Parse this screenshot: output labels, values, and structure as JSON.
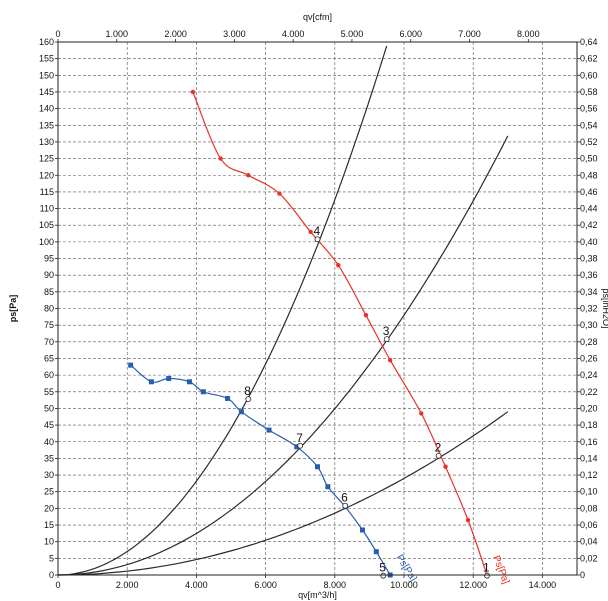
{
  "chart_data": {
    "type": "line",
    "x_axis_bottom": {
      "label": "qv[m^3/h]",
      "range": [
        0,
        15000
      ],
      "ticks": [
        0,
        2000,
        4000,
        6000,
        8000,
        10000,
        12000,
        14000
      ],
      "tick_labels": [
        "0",
        "2.000",
        "4.000",
        "6.000",
        "8.000",
        "10.000",
        "12.000",
        "14.000"
      ]
    },
    "x_axis_top": {
      "label": "qv[cfm]",
      "range": [
        0,
        8828
      ],
      "ticks": [
        0,
        1000,
        2000,
        3000,
        4000,
        5000,
        6000,
        7000,
        8000
      ],
      "tick_labels": [
        "0",
        "1.000",
        "2.000",
        "3.000",
        "4.000",
        "5.000",
        "6.000",
        "7.000",
        "8.000"
      ]
    },
    "y_axis_left": {
      "label": "ps[Pa]",
      "range": [
        0,
        160
      ],
      "step": 5
    },
    "y_axis_right": {
      "label": "ps[inH2O]",
      "range": [
        0,
        0.64
      ],
      "step": 0.02
    },
    "grid": true,
    "series": [
      {
        "name": "Ps[Pa]",
        "color": "#e8312a",
        "points": [
          [
            3900,
            145
          ],
          [
            4700,
            125
          ],
          [
            5500,
            120
          ],
          [
            6400,
            114.5
          ],
          [
            7300,
            103
          ],
          [
            8100,
            93
          ],
          [
            8900,
            78
          ],
          [
            9600,
            64.5
          ],
          [
            10500,
            48.5
          ],
          [
            11200,
            32.5
          ],
          [
            11850,
            16.5
          ],
          [
            12400,
            0
          ]
        ]
      },
      {
        "name": "Ps[Pa]",
        "color": "#2a5db0",
        "points": [
          [
            2100,
            63
          ],
          [
            2700,
            58
          ],
          [
            3200,
            59
          ],
          [
            3800,
            58
          ],
          [
            4200,
            55
          ],
          [
            4900,
            53
          ],
          [
            5300,
            49
          ],
          [
            6100,
            43.5
          ],
          [
            6900,
            38.5
          ],
          [
            7500,
            32.5
          ],
          [
            7800,
            26.5
          ],
          [
            8300,
            20.5
          ],
          [
            8800,
            13.5
          ],
          [
            9200,
            7
          ],
          [
            9600,
            0
          ]
        ]
      }
    ],
    "system_curves": [
      {
        "k": 1.76e-06,
        "x_max": 9500
      },
      {
        "k": 7.8e-07,
        "x_max": 13000
      },
      {
        "k": 2.9e-07,
        "x_max": 13000
      }
    ],
    "point_labels": [
      {
        "text": "1",
        "x": 12400,
        "y": 1
      },
      {
        "text": "2",
        "x": 11000,
        "y": 37
      },
      {
        "text": "3",
        "x": 9500,
        "y": 72
      },
      {
        "text": "4",
        "x": 7500,
        "y": 102
      },
      {
        "text": "5",
        "x": 9400,
        "y": 1
      },
      {
        "text": "6",
        "x": 8300,
        "y": 22
      },
      {
        "text": "7",
        "x": 7000,
        "y": 40
      },
      {
        "text": "8",
        "x": 5500,
        "y": 54
      }
    ]
  }
}
